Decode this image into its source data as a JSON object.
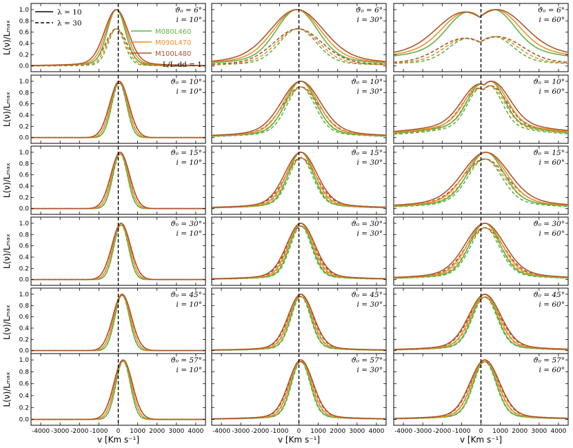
{
  "chart_data": {
    "type": "line",
    "title": "",
    "xlabel": "v [Km s⁻¹]",
    "ylabel": "L(ν)/Lₘₐₓ",
    "xlim": [
      -4500,
      4500
    ],
    "ylim": [
      -0.04,
      1.06
    ],
    "x_ticks": [
      -4000,
      -3000,
      -2000,
      -1000,
      0,
      1000,
      2000,
      3000,
      4000
    ],
    "x_tick_labels": [
      "-4000",
      "-3000",
      "-2000",
      "-1000",
      "0",
      "1000",
      "2000",
      "3000",
      "4000"
    ],
    "y_ticks": [
      0.0,
      0.2,
      0.4,
      0.6,
      0.8,
      1.0
    ],
    "y_tick_labels": [
      "0.0",
      "0.2",
      "0.4",
      "0.6",
      "0.8",
      "1.0"
    ],
    "theta0_values": [
      "6°",
      "10°",
      "15°",
      "30°",
      "45°",
      "57°"
    ],
    "inclinations": [
      "10°",
      "30°",
      "60°"
    ],
    "theta0_prefix": "ϑ₀ = ",
    "incl_prefix": "i = ",
    "vertical_marker_x": 0,
    "legend": {
      "line_styles": [
        {
          "style": "solid",
          "label": "λ = 10"
        },
        {
          "style": "dashed",
          "label": "λ = 30"
        }
      ],
      "eddington_label": "L/Lₑdd = 1"
    },
    "models": [
      {
        "name": "M080L460",
        "color": "#5bb347",
        "width_factor": 0.88
      },
      {
        "name": "M090L470",
        "color": "#f28c24",
        "width_factor": 1.0
      },
      {
        "name": "M100L480",
        "color": "#a9552f",
        "width_factor": 1.14
      }
    ],
    "panels": [
      {
        "row": 0,
        "col": 0,
        "solid": {
          "center": -100,
          "width": 520,
          "wing": 0.09,
          "peak": 1.0,
          "double": 0
        },
        "dashed": {
          "center": -100,
          "width": 470,
          "wing": 0.06,
          "peak": 0.66,
          "double": 0
        }
      },
      {
        "row": 0,
        "col": 1,
        "solid": {
          "center": -100,
          "width": 1150,
          "wing": 0.22,
          "peak": 1.0,
          "double": 0
        },
        "dashed": {
          "center": -50,
          "width": 1050,
          "wing": 0.15,
          "peak": 0.66,
          "double": 0
        }
      },
      {
        "row": 0,
        "col": 2,
        "solid": {
          "center": 0,
          "width": 1850,
          "wing": 0.38,
          "peak": 1.0,
          "double": 820
        },
        "dashed": {
          "center": 0,
          "width": 1750,
          "wing": 0.2,
          "peak": 0.52,
          "double": 800
        }
      },
      {
        "row": 1,
        "col": 0,
        "solid": {
          "center": 50,
          "width": 430,
          "wing": 0.0,
          "peak": 1.0,
          "double": 0
        },
        "dashed": {
          "center": 50,
          "width": 430,
          "wing": 0.0,
          "peak": 0.97,
          "double": 0
        }
      },
      {
        "row": 1,
        "col": 1,
        "solid": {
          "center": 100,
          "width": 850,
          "wing": 0.18,
          "peak": 1.0,
          "double": 0
        },
        "dashed": {
          "center": 100,
          "width": 800,
          "wing": 0.18,
          "peak": 0.9,
          "double": 0
        }
      },
      {
        "row": 1,
        "col": 2,
        "solid": {
          "center": 250,
          "width": 1250,
          "wing": 0.3,
          "peak": 1.0,
          "double": 300
        },
        "dashed": {
          "center": 200,
          "width": 1150,
          "wing": 0.28,
          "peak": 0.92,
          "double": 300
        }
      },
      {
        "row": 2,
        "col": 0,
        "solid": {
          "center": 100,
          "width": 420,
          "wing": 0.0,
          "peak": 1.0,
          "double": 0
        },
        "dashed": {
          "center": 100,
          "width": 420,
          "wing": 0.0,
          "peak": 0.97,
          "double": 0
        }
      },
      {
        "row": 2,
        "col": 1,
        "solid": {
          "center": 100,
          "width": 700,
          "wing": 0.14,
          "peak": 1.0,
          "double": 0
        },
        "dashed": {
          "center": 100,
          "width": 680,
          "wing": 0.16,
          "peak": 0.9,
          "double": 0
        }
      },
      {
        "row": 2,
        "col": 2,
        "solid": {
          "center": 250,
          "width": 1000,
          "wing": 0.22,
          "peak": 1.0,
          "double": 0
        },
        "dashed": {
          "center": 200,
          "width": 950,
          "wing": 0.22,
          "peak": 0.88,
          "double": 0
        }
      },
      {
        "row": 3,
        "col": 0,
        "solid": {
          "center": 150,
          "width": 420,
          "wing": 0.0,
          "peak": 1.0,
          "double": 0
        },
        "dashed": {
          "center": 150,
          "width": 420,
          "wing": 0.0,
          "peak": 0.97,
          "double": 0
        }
      },
      {
        "row": 3,
        "col": 1,
        "solid": {
          "center": 100,
          "width": 620,
          "wing": 0.12,
          "peak": 1.0,
          "double": 0
        },
        "dashed": {
          "center": 100,
          "width": 600,
          "wing": 0.12,
          "peak": 0.95,
          "double": 0
        }
      },
      {
        "row": 3,
        "col": 2,
        "solid": {
          "center": 200,
          "width": 850,
          "wing": 0.18,
          "peak": 1.0,
          "double": 0
        },
        "dashed": {
          "center": 200,
          "width": 820,
          "wing": 0.18,
          "peak": 0.92,
          "double": 0
        }
      },
      {
        "row": 4,
        "col": 0,
        "solid": {
          "center": 200,
          "width": 420,
          "wing": 0.0,
          "peak": 1.0,
          "double": 0
        },
        "dashed": {
          "center": 200,
          "width": 420,
          "wing": 0.0,
          "peak": 0.98,
          "double": 0
        }
      },
      {
        "row": 4,
        "col": 1,
        "solid": {
          "center": 100,
          "width": 560,
          "wing": 0.1,
          "peak": 1.0,
          "double": 0
        },
        "dashed": {
          "center": 100,
          "width": 550,
          "wing": 0.1,
          "peak": 0.96,
          "double": 0
        }
      },
      {
        "row": 4,
        "col": 2,
        "solid": {
          "center": 200,
          "width": 700,
          "wing": 0.14,
          "peak": 1.0,
          "double": 0
        },
        "dashed": {
          "center": 200,
          "width": 690,
          "wing": 0.14,
          "peak": 0.95,
          "double": 0
        }
      },
      {
        "row": 5,
        "col": 0,
        "solid": {
          "center": 250,
          "width": 420,
          "wing": 0.0,
          "peak": 1.0,
          "double": 0
        },
        "dashed": {
          "center": 250,
          "width": 420,
          "wing": 0.0,
          "peak": 0.98,
          "double": 0
        }
      },
      {
        "row": 5,
        "col": 1,
        "solid": {
          "center": 100,
          "width": 540,
          "wing": 0.1,
          "peak": 1.0,
          "double": 0
        },
        "dashed": {
          "center": 100,
          "width": 530,
          "wing": 0.1,
          "peak": 0.97,
          "double": 0
        }
      },
      {
        "row": 5,
        "col": 2,
        "solid": {
          "center": 200,
          "width": 650,
          "wing": 0.12,
          "peak": 1.0,
          "double": 0
        },
        "dashed": {
          "center": 200,
          "width": 640,
          "wing": 0.12,
          "peak": 0.97,
          "double": 0
        }
      }
    ]
  }
}
